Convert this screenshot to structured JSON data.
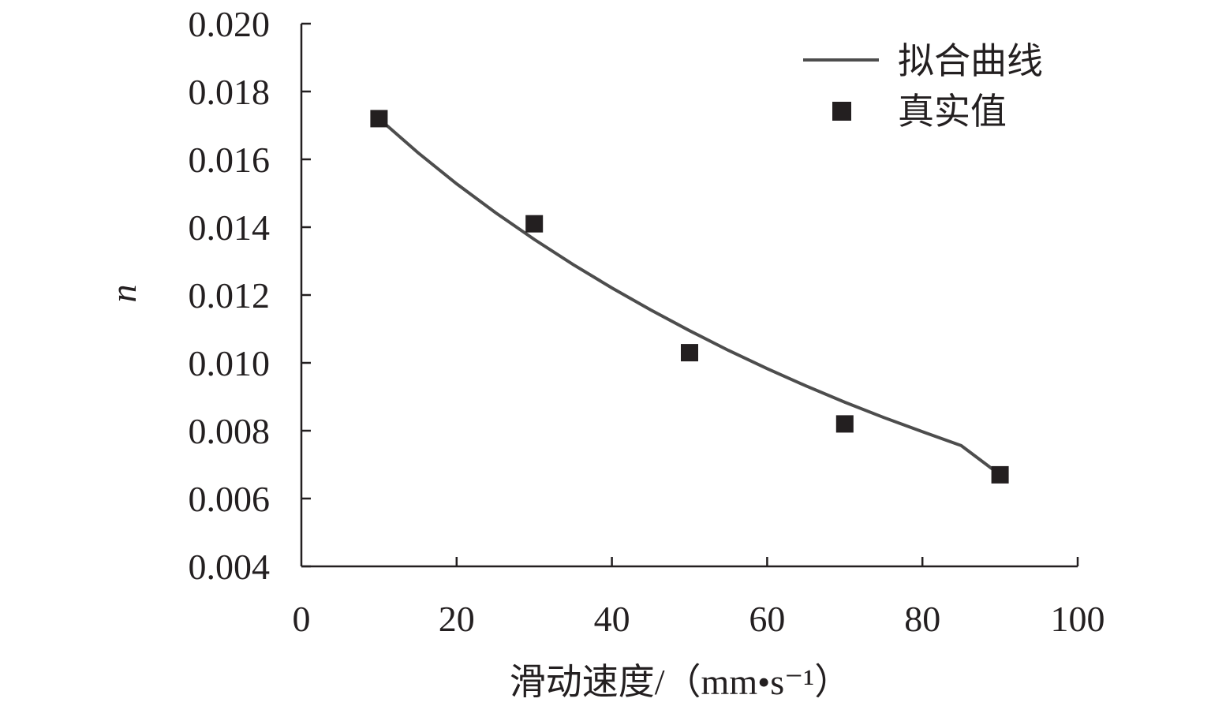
{
  "chart_data": {
    "type": "scatter",
    "title": "",
    "xlabel": "滑动速度/（mm•s⁻¹）",
    "ylabel": "n",
    "xlim": [
      0,
      100
    ],
    "ylim": [
      0.004,
      0.02
    ],
    "x_ticks": [
      0,
      20,
      40,
      60,
      80,
      100
    ],
    "x_tick_labels": [
      "0",
      "20",
      "40",
      "60",
      "80",
      "100"
    ],
    "y_ticks": [
      0.004,
      0.006,
      0.008,
      0.01,
      0.012,
      0.014,
      0.016,
      0.018,
      0.02
    ],
    "y_tick_labels": [
      "0.004",
      "0.006",
      "0.008",
      "0.010",
      "0.012",
      "0.014",
      "0.016",
      "0.018",
      "0.020"
    ],
    "grid": false,
    "legend_position": "top-right",
    "series": [
      {
        "name": "拟合曲线",
        "kind": "line",
        "color": "#4d4d4d",
        "x": [
          10,
          15,
          20,
          25,
          30,
          35,
          40,
          45,
          50,
          55,
          60,
          65,
          70,
          75,
          80,
          85,
          90
        ],
        "y": [
          0.0172,
          0.0162,
          0.01528,
          0.01443,
          0.01364,
          0.0129,
          0.01221,
          0.01156,
          0.01095,
          0.01037,
          0.00983,
          0.00932,
          0.00884,
          0.00839,
          0.00797,
          0.00756,
          0.0067
        ]
      },
      {
        "name": "真实值",
        "kind": "scatter",
        "marker": "square",
        "color": "#231f20",
        "x": [
          10,
          30,
          50,
          70,
          90
        ],
        "y": [
          0.0172,
          0.0141,
          0.0103,
          0.0082,
          0.0067
        ]
      }
    ]
  }
}
